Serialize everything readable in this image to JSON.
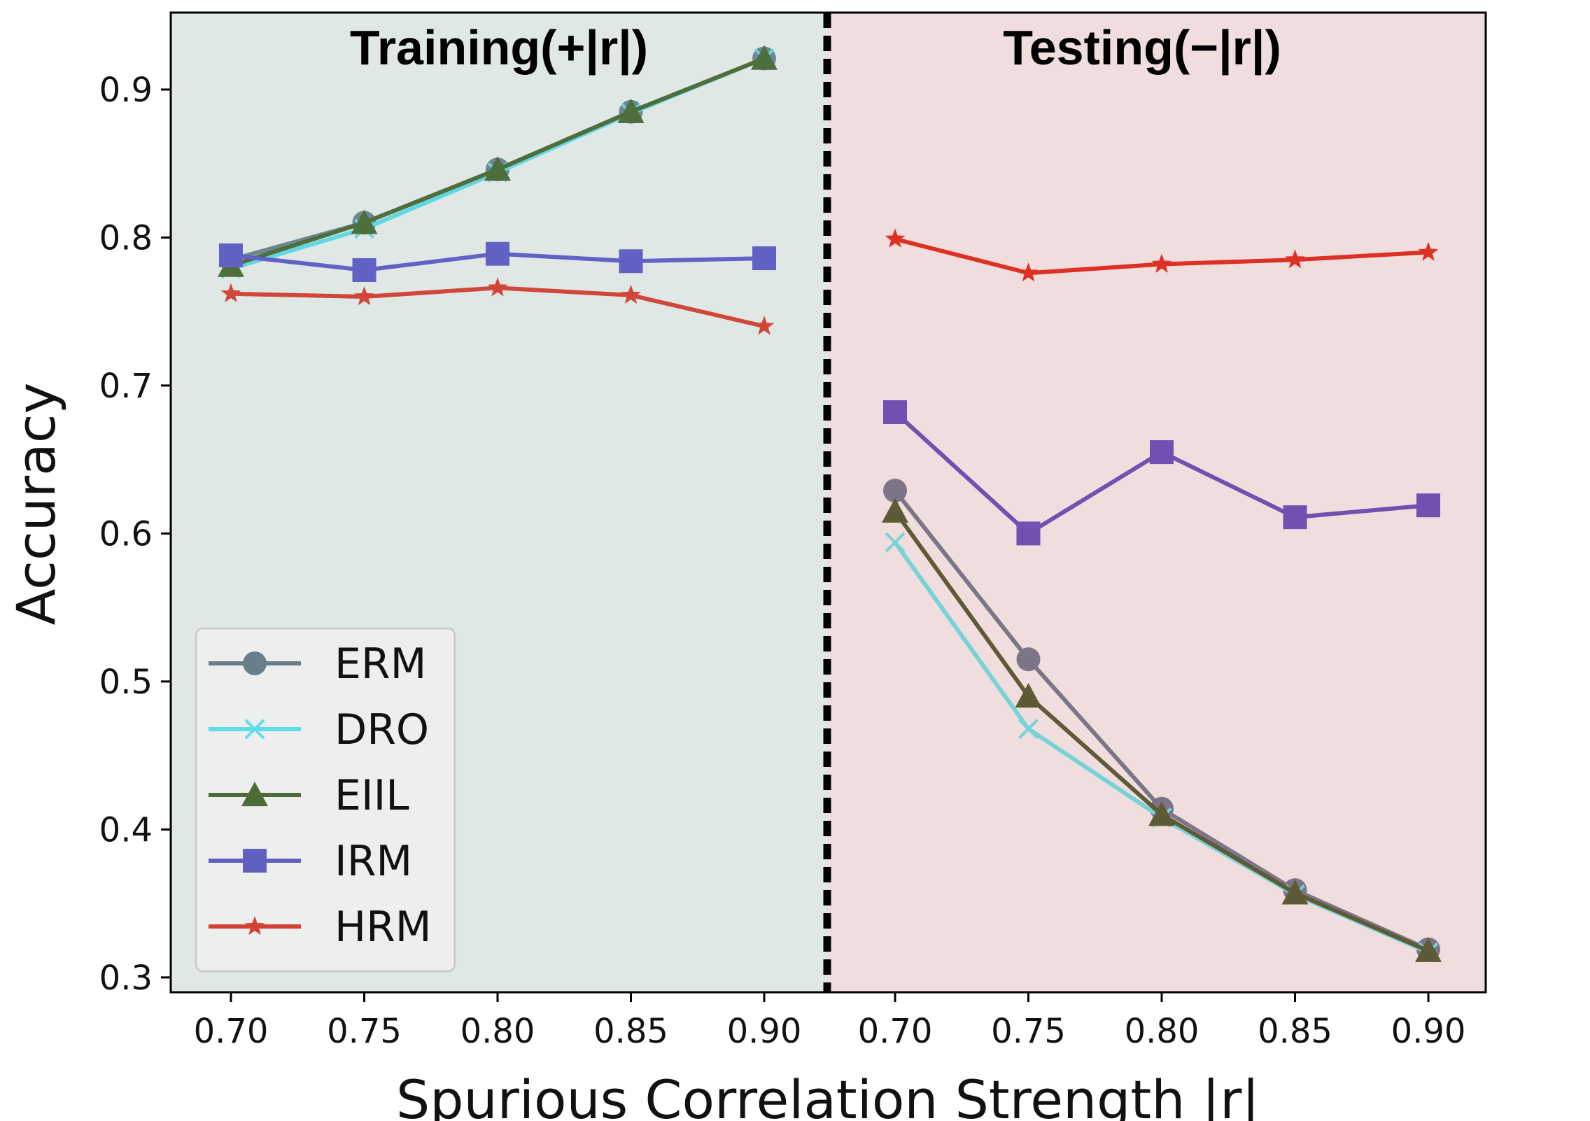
{
  "chart_data": {
    "type": "line",
    "title": "",
    "xlabel": "Spurious Correlation Strength |r|",
    "ylabel": "Accuracy",
    "ylim": [
      0.29,
      0.952
    ],
    "y_ticks": [
      0.3,
      0.4,
      0.5,
      0.6,
      0.7,
      0.8,
      0.9
    ],
    "y_tick_labels": [
      "0.3",
      "0.4",
      "0.5",
      "0.6",
      "0.7",
      "0.8",
      "0.9"
    ],
    "legend_position": "bottom-left",
    "regions": [
      {
        "name": "training",
        "title": "Training(+|r|)",
        "background": "#e0e8e6",
        "categories": [
          "0.70",
          "0.75",
          "0.80",
          "0.85",
          "0.90"
        ],
        "series": [
          {
            "name": "ERM",
            "values": [
              0.785,
              0.81,
              0.846,
              0.885,
              0.921
            ]
          },
          {
            "name": "DRO",
            "values": [
              0.779,
              0.806,
              0.844,
              0.884,
              0.921
            ]
          },
          {
            "name": "EIIL",
            "values": [
              0.781,
              0.81,
              0.846,
              0.885,
              0.921
            ]
          },
          {
            "name": "IRM",
            "values": [
              0.788,
              0.778,
              0.789,
              0.784,
              0.786
            ]
          },
          {
            "name": "HRM",
            "values": [
              0.762,
              0.76,
              0.766,
              0.761,
              0.74
            ]
          }
        ]
      },
      {
        "name": "testing",
        "title": "Testing(−|r|)",
        "background": "#f0dddd",
        "categories": [
          "0.70",
          "0.75",
          "0.80",
          "0.85",
          "0.90"
        ],
        "series": [
          {
            "name": "ERM",
            "values": [
              0.629,
              0.515,
              0.414,
              0.359,
              0.319
            ]
          },
          {
            "name": "DRO",
            "values": [
              0.594,
              0.468,
              0.408,
              0.356,
              0.317
            ]
          },
          {
            "name": "EIIL",
            "values": [
              0.615,
              0.49,
              0.41,
              0.357,
              0.318
            ]
          },
          {
            "name": "IRM",
            "values": [
              0.682,
              0.6,
              0.655,
              0.611,
              0.619
            ]
          },
          {
            "name": "HRM",
            "values": [
              0.799,
              0.776,
              0.782,
              0.785,
              0.79
            ]
          }
        ]
      }
    ],
    "series_styles": [
      {
        "name": "ERM",
        "marker": "circle",
        "legend_color": "#6a7e8a",
        "colors": {
          "training": "#6e8790",
          "testing": "#7d7488"
        }
      },
      {
        "name": "DRO",
        "marker": "x",
        "legend_color": "#5fdde6",
        "colors": {
          "training": "#5fd8e1",
          "testing": "#76d3d7"
        }
      },
      {
        "name": "EIIL",
        "marker": "triangle",
        "legend_color": "#4e6b3a",
        "colors": {
          "training": "#4f6e3d",
          "testing": "#5e5a35"
        }
      },
      {
        "name": "IRM",
        "marker": "square",
        "legend_color": "#6060c0",
        "colors": {
          "training": "#6262c4",
          "testing": "#7050b0"
        }
      },
      {
        "name": "HRM",
        "marker": "star",
        "legend_color": "#d24232",
        "colors": {
          "training": "#d0473a",
          "testing": "#dc3124"
        }
      }
    ]
  }
}
